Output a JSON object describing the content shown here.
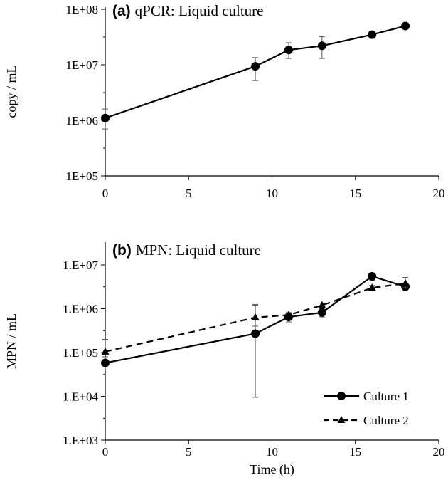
{
  "chart_data": [
    {
      "type": "line",
      "title_tag": "(a)",
      "title": "qPCR: Liquid culture",
      "xlabel": "",
      "ylabel": "copy / mL",
      "xlim": [
        0,
        20
      ],
      "xticks": [
        "0",
        "5",
        "10",
        "15",
        "20"
      ],
      "ylim": [
        100000,
        100000000
      ],
      "yscale": "log",
      "yticks": [
        "1E+05",
        "1E+06",
        "1E+07",
        "1E+08"
      ],
      "grid": false,
      "series": [
        {
          "marker": "circle",
          "linestyle": "solid",
          "color": "#000000",
          "x": [
            0,
            9,
            11,
            13,
            16,
            18
          ],
          "y": [
            1100000,
            9400000,
            18500000,
            22000000,
            35000000,
            50000000
          ],
          "err_low": [
            700000,
            5200000,
            13000000,
            13000000,
            30000000,
            47000000
          ],
          "err_high": [
            1600000,
            13500000,
            25000000,
            32000000,
            40000000,
            53000000
          ]
        }
      ]
    },
    {
      "type": "line",
      "title_tag": "(b)",
      "title": "MPN: Liquid culture",
      "xlabel": "Time (h)",
      "ylabel": "MPN / mL",
      "xlim": [
        0,
        20
      ],
      "xticks": [
        "0",
        "5",
        "10",
        "15",
        "20"
      ],
      "ylim": [
        1000,
        10000000
      ],
      "yscale": "log",
      "yticks": [
        "1.E+03",
        "1.E+04",
        "1.E+05",
        "1.E+06",
        "1.E+07"
      ],
      "grid": false,
      "legend_position": "bottom-right",
      "series": [
        {
          "name": "Culture 1",
          "marker": "circle",
          "linestyle": "solid",
          "color": "#000000",
          "x": [
            0,
            9,
            11,
            13,
            16,
            18
          ],
          "y": [
            58000,
            270000,
            650000,
            820000,
            5500000,
            3200000
          ],
          "err_low": [
            40000,
            9500,
            500000,
            650000,
            4500000,
            2600000
          ],
          "err_high": [
            80000,
            1200000,
            800000,
            1000000,
            6500000,
            3800000
          ]
        },
        {
          "name": "Culture 2",
          "marker": "triangle",
          "linestyle": "dashed",
          "color": "#000000",
          "x": [
            0,
            9,
            11,
            13,
            16,
            18
          ],
          "y": [
            105000,
            630000,
            720000,
            1200000,
            3000000,
            3800000
          ],
          "err_low": [
            90000,
            400000,
            620000,
            1050000,
            2600000,
            3000000
          ],
          "err_high": [
            200000,
            1250000,
            820000,
            1350000,
            3400000,
            5200000
          ]
        }
      ]
    }
  ]
}
